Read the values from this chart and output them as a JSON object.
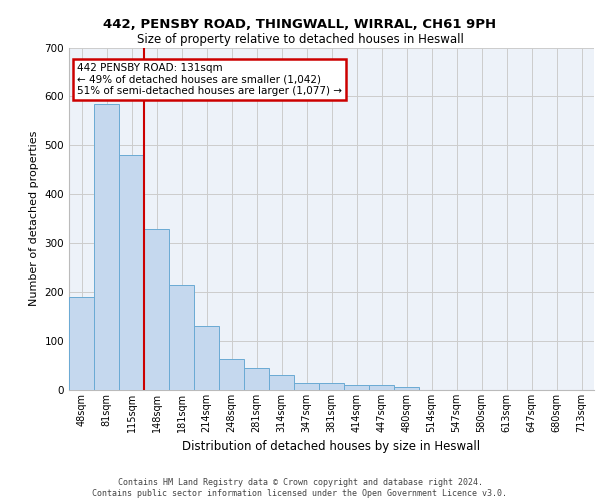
{
  "title1": "442, PENSBY ROAD, THINGWALL, WIRRAL, CH61 9PH",
  "title2": "Size of property relative to detached houses in Heswall",
  "xlabel": "Distribution of detached houses by size in Heswall",
  "ylabel": "Number of detached properties",
  "categories": [
    "48sqm",
    "81sqm",
    "115sqm",
    "148sqm",
    "181sqm",
    "214sqm",
    "248sqm",
    "281sqm",
    "314sqm",
    "347sqm",
    "381sqm",
    "414sqm",
    "447sqm",
    "480sqm",
    "514sqm",
    "547sqm",
    "580sqm",
    "613sqm",
    "647sqm",
    "680sqm",
    "713sqm"
  ],
  "values": [
    190,
    585,
    480,
    330,
    215,
    130,
    63,
    45,
    30,
    15,
    15,
    10,
    10,
    7,
    0,
    0,
    0,
    0,
    0,
    0,
    0
  ],
  "bar_color": "#c5d8ee",
  "bar_edge_color": "#6aaad4",
  "property_line_x": 2.5,
  "annotation_line1": "442 PENSBY ROAD: 131sqm",
  "annotation_line2": "← 49% of detached houses are smaller (1,042)",
  "annotation_line3": "51% of semi-detached houses are larger (1,077) →",
  "annotation_box_color": "#ffffff",
  "annotation_box_edge": "#cc0000",
  "vline_color": "#cc0000",
  "grid_color": "#cccccc",
  "background_color": "#edf2f9",
  "footer1": "Contains HM Land Registry data © Crown copyright and database right 2024.",
  "footer2": "Contains public sector information licensed under the Open Government Licence v3.0.",
  "ylim": [
    0,
    700
  ],
  "yticks": [
    0,
    100,
    200,
    300,
    400,
    500,
    600,
    700
  ]
}
